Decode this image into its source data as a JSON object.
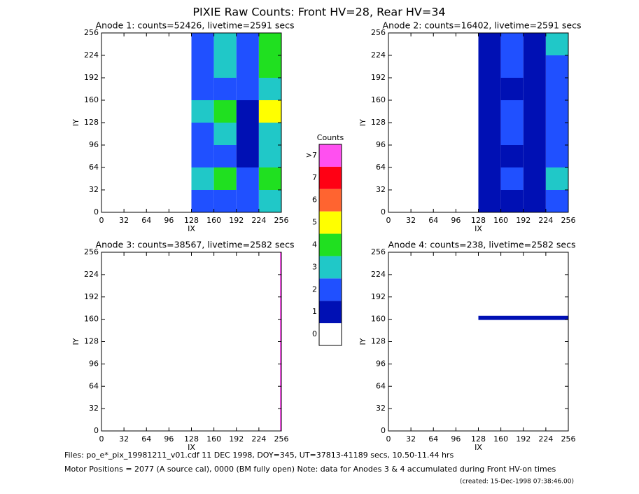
{
  "title": "PIXIE Raw Counts:  Front HV=28, Rear HV=34",
  "footer": {
    "files": "Files: po_e*_pix_19981211_v01.cdf    11 DEC 1998, DOY=345, UT=37813-41189 secs, 10.50-11.44 hrs",
    "motor": "Motor Positions = 2077 (A source cal), 0000 (BM fully open)    Note: data for Anodes 3 & 4 accumulated during Front HV-on times",
    "created": "(created: 15-Dec-1998 07:38:46.00)"
  },
  "chart_data": [
    {
      "type": "heatmap",
      "title": "Anode 1: counts=52426, livetime=2591 secs",
      "xlabel": "IX",
      "ylabel": "IY",
      "xlim": [
        0,
        256
      ],
      "ylim": [
        0,
        256
      ],
      "xticks": [
        0,
        32,
        64,
        96,
        128,
        160,
        192,
        224,
        256
      ],
      "yticks": [
        0,
        32,
        64,
        96,
        128,
        160,
        192,
        224,
        256
      ],
      "xbins": [
        0,
        32,
        64,
        96,
        128,
        160,
        192,
        224,
        256
      ],
      "ybins": [
        0,
        32,
        64,
        96,
        128,
        160,
        192,
        224,
        256
      ],
      "values": [
        [
          0,
          0,
          0,
          0,
          2,
          2,
          2,
          3
        ],
        [
          0,
          0,
          0,
          0,
          3,
          4,
          2,
          4
        ],
        [
          0,
          0,
          0,
          0,
          2,
          2,
          1,
          3
        ],
        [
          0,
          0,
          0,
          0,
          2,
          3,
          1,
          3
        ],
        [
          0,
          0,
          0,
          0,
          3,
          4,
          1,
          5
        ],
        [
          0,
          0,
          0,
          0,
          2,
          2,
          2,
          3
        ],
        [
          0,
          0,
          0,
          0,
          2,
          3,
          2,
          4
        ],
        [
          0,
          0,
          0,
          0,
          2,
          3,
          2,
          4
        ]
      ]
    },
    {
      "type": "heatmap",
      "title": "Anode 2: counts=16402, livetime=2591 secs",
      "xlabel": "IX",
      "ylabel": "IY",
      "xlim": [
        0,
        256
      ],
      "ylim": [
        0,
        256
      ],
      "xticks": [
        0,
        32,
        64,
        96,
        128,
        160,
        192,
        224,
        256
      ],
      "yticks": [
        0,
        32,
        64,
        96,
        128,
        160,
        192,
        224,
        256
      ],
      "xbins": [
        0,
        32,
        64,
        96,
        128,
        160,
        192,
        224,
        256
      ],
      "ybins": [
        0,
        32,
        64,
        96,
        128,
        160,
        192,
        224,
        256
      ],
      "values": [
        [
          0,
          0,
          0,
          0,
          1,
          1,
          1,
          2
        ],
        [
          0,
          0,
          0,
          0,
          1,
          2,
          1,
          3
        ],
        [
          0,
          0,
          0,
          0,
          1,
          1,
          1,
          2
        ],
        [
          0,
          0,
          0,
          0,
          1,
          2,
          1,
          2
        ],
        [
          0,
          0,
          0,
          0,
          1,
          2,
          1,
          2
        ],
        [
          0,
          0,
          0,
          0,
          1,
          1,
          1,
          2
        ],
        [
          0,
          0,
          0,
          0,
          1,
          2,
          1,
          2
        ],
        [
          0,
          0,
          0,
          0,
          1,
          2,
          1,
          3
        ]
      ]
    },
    {
      "type": "heatmap",
      "title": "Anode 3: counts=38567, livetime=2582 secs",
      "xlabel": "IX",
      "ylabel": "IY",
      "xlim": [
        0,
        256
      ],
      "ylim": [
        0,
        256
      ],
      "xticks": [
        0,
        32,
        64,
        96,
        128,
        160,
        192,
        224,
        256
      ],
      "yticks": [
        0,
        32,
        64,
        96,
        128,
        160,
        192,
        224,
        256
      ],
      "xbins": [
        0,
        254,
        256
      ],
      "ybins": [
        0,
        256
      ],
      "values": [
        [
          0,
          8
        ]
      ]
    },
    {
      "type": "heatmap",
      "title": "Anode 4: counts=238, livetime=2582 secs",
      "xlabel": "IX",
      "ylabel": "IY",
      "xlim": [
        0,
        256
      ],
      "ylim": [
        0,
        256
      ],
      "xticks": [
        0,
        32,
        64,
        96,
        128,
        160,
        192,
        224,
        256
      ],
      "yticks": [
        0,
        32,
        64,
        96,
        128,
        160,
        192,
        224,
        256
      ],
      "xbins": [
        0,
        128,
        256
      ],
      "ybins": [
        0,
        159,
        165,
        256
      ],
      "values": [
        [
          0,
          0
        ],
        [
          0,
          1
        ],
        [
          0,
          0
        ]
      ]
    },
    {
      "type": "colorbar",
      "title": "Counts",
      "categories": [
        "0",
        "1",
        "2",
        "3",
        "4",
        "5",
        "6",
        "7",
        ">7"
      ],
      "colors": [
        "#ffffff",
        "#0010b4",
        "#2050ff",
        "#20c8c8",
        "#20e020",
        "#ffff00",
        "#ff6430",
        "#ff0014",
        "#ff50f0"
      ]
    }
  ]
}
